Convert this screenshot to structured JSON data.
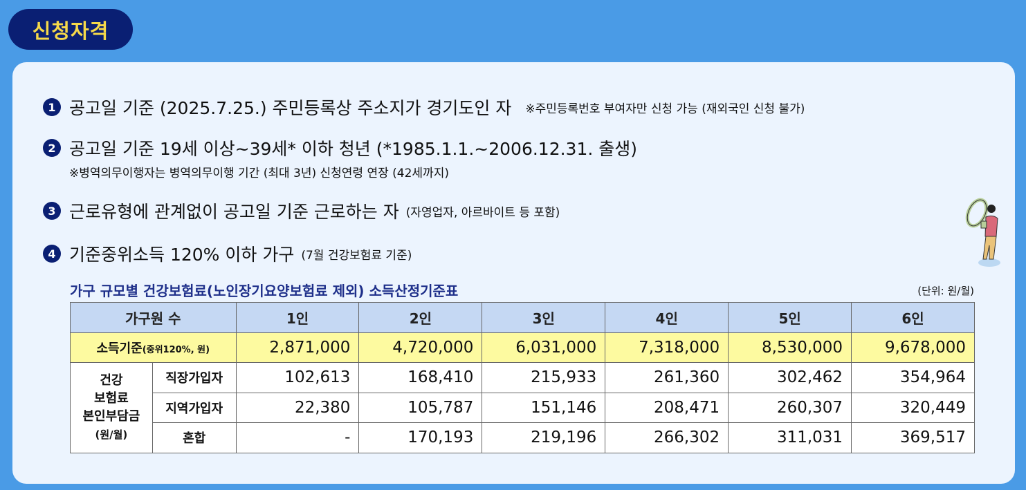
{
  "badge": {
    "title": "신청자격"
  },
  "criteria": [
    {
      "num": "1",
      "text": "공고일 기준 (2025.7.25.) 주민등록상 주소지가 경기도인 자",
      "note": "※주민등록번호 부여자만 신청 가능 (재외국인 신청 불가)"
    },
    {
      "num": "2",
      "text": "공고일 기준 19세 이상~39세* 이하 청년 (*1985.1.1.~2006.12.31. 출생)",
      "note": "※병역의무이행자는 병역의무이행 기간 (최대 3년) 신청연령 연장 (42세까지)"
    },
    {
      "num": "3",
      "text": "근로유형에 관계없이 공고일 기준 근로하는 자",
      "note": "(자영업자, 아르바이트 등 포함)"
    },
    {
      "num": "4",
      "text": "기준중위소득 120% 이하 가구",
      "note": "(7월 건강보험료 기준)"
    }
  ],
  "table": {
    "title": "가구 규모별 건강보험료(노인장기요양보험료 제외) 소득산정기준표",
    "unit": "(단위: 원/월)",
    "header_label": "가구원 수",
    "columns": [
      "1인",
      "2인",
      "3인",
      "4인",
      "5인",
      "6인"
    ],
    "income_label": "소득기준",
    "income_label_small": "(중위120%, 원)",
    "income": [
      "2,871,000",
      "4,720,000",
      "6,031,000",
      "7,318,000",
      "8,530,000",
      "9,678,000"
    ],
    "group_label": [
      "건강",
      "보험료",
      "본인부담금",
      "(원/월)"
    ],
    "rows": [
      {
        "label": "직장가입자",
        "values": [
          "102,613",
          "168,410",
          "215,933",
          "261,360",
          "302,462",
          "354,964"
        ]
      },
      {
        "label": "지역가입자",
        "values": [
          "22,380",
          "105,787",
          "151,146",
          "208,471",
          "260,307",
          "320,449"
        ]
      },
      {
        "label": "혼합",
        "values": [
          "-",
          "170,193",
          "219,196",
          "266,302",
          "311,031",
          "369,517"
        ]
      }
    ]
  },
  "colors": {
    "background": "#4a9be6",
    "badge": "#0a1f73",
    "badge_text": "#f5d94a",
    "header_row": "#c5d8f3",
    "income_row": "#fdfaa0"
  }
}
